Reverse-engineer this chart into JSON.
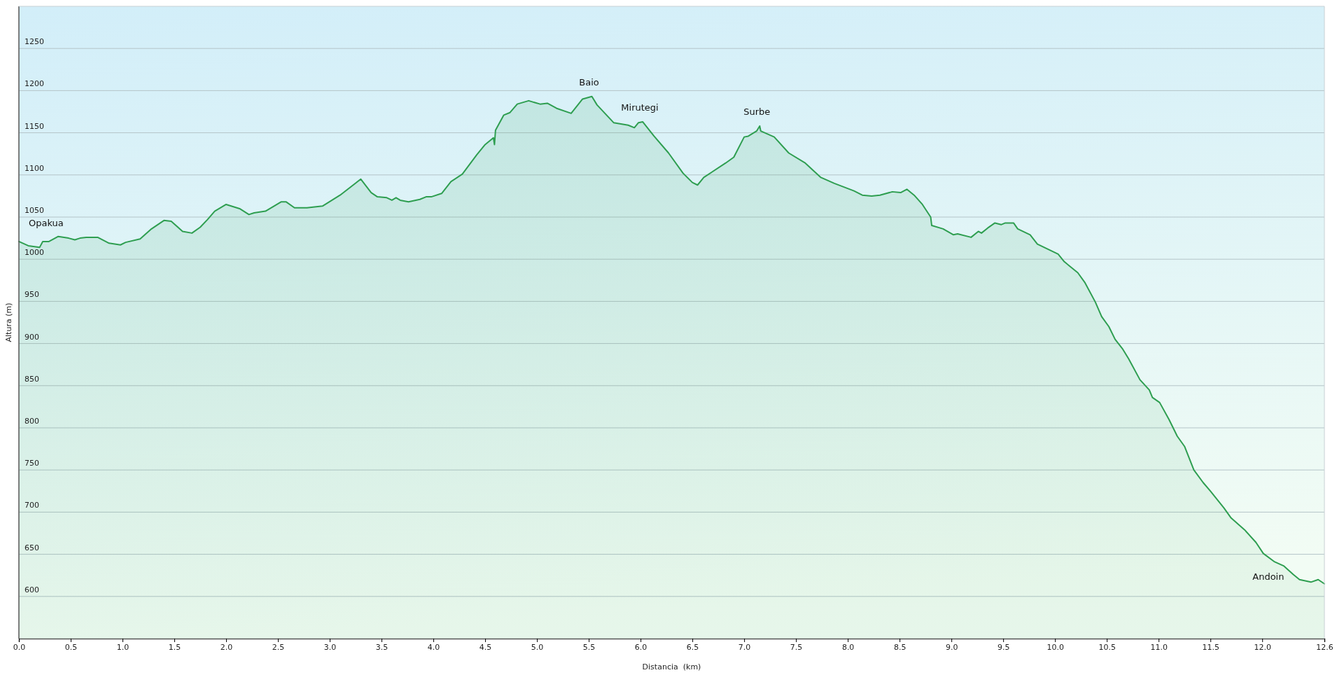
{
  "chart_data": {
    "type": "area",
    "xlabel": "Distancia  (km)",
    "ylabel": "Altura (m)",
    "xlim": [
      0,
      12.6
    ],
    "ylim": [
      550,
      1300
    ],
    "xticks": [
      {
        "value": 0,
        "label": "0.0"
      },
      {
        "value": 0.5,
        "label": "0.5"
      },
      {
        "value": 1,
        "label": "1.0"
      },
      {
        "value": 1.5,
        "label": "1.5"
      },
      {
        "value": 2,
        "label": "2.0"
      },
      {
        "value": 2.5,
        "label": "2.5"
      },
      {
        "value": 3,
        "label": "3.0"
      },
      {
        "value": 3.5,
        "label": "3.5"
      },
      {
        "value": 4,
        "label": "4.0"
      },
      {
        "value": 4.5,
        "label": "4.5"
      },
      {
        "value": 5,
        "label": "5.0"
      },
      {
        "value": 5.5,
        "label": "5.5"
      },
      {
        "value": 6,
        "label": "6.0"
      },
      {
        "value": 6.5,
        "label": "6.5"
      },
      {
        "value": 7,
        "label": "7.0"
      },
      {
        "value": 7.5,
        "label": "7.5"
      },
      {
        "value": 8,
        "label": "8.0"
      },
      {
        "value": 8.5,
        "label": "8.5"
      },
      {
        "value": 9,
        "label": "9.0"
      },
      {
        "value": 9.5,
        "label": "9.5"
      },
      {
        "value": 10,
        "label": "10.0"
      },
      {
        "value": 10.5,
        "label": "10.5"
      },
      {
        "value": 11,
        "label": "11.0"
      },
      {
        "value": 11.5,
        "label": "11.5"
      },
      {
        "value": 12,
        "label": "12.0"
      },
      12.6
    ],
    "yticks": [
      600,
      650,
      700,
      750,
      800,
      850,
      900,
      950,
      1000,
      1050,
      1100,
      1150,
      1200,
      1250
    ],
    "grid": "y",
    "annotations": [
      {
        "text": "Opakua",
        "x": 0,
        "y": 1021
      },
      {
        "text": "Baio",
        "x": 5.53,
        "y": 1193
      },
      {
        "text": "Mirutegi",
        "x": 6.02,
        "y": 1163
      },
      {
        "text": "Surbe",
        "x": 7.15,
        "y": 1158
      },
      {
        "text": "Andoin",
        "x": 12.36,
        "y": 620
      }
    ],
    "series": [
      {
        "color": "#2e9e50",
        "x": [
          0,
          0.09,
          0.2,
          0.23,
          0.29,
          0.38,
          0.48,
          0.54,
          0.59,
          0.65,
          0.76,
          0.87,
          0.98,
          1.03,
          1.17,
          1.28,
          1.4,
          1.47,
          1.58,
          1.67,
          1.75,
          1.82,
          1.89,
          2.0,
          2.13,
          2.22,
          2.27,
          2.38,
          2.53,
          2.58,
          2.66,
          2.78,
          2.93,
          3.1,
          3.3,
          3.4,
          3.46,
          3.55,
          3.6,
          3.64,
          3.68,
          3.76,
          3.87,
          3.93,
          3.98,
          4.08,
          4.17,
          4.28,
          4.42,
          4.5,
          4.58,
          4.59,
          4.6,
          4.68,
          4.74,
          4.81,
          4.92,
          5.03,
          5.1,
          5.19,
          5.33,
          5.44,
          5.53,
          5.58,
          5.74,
          5.88,
          5.94,
          5.98,
          6.02,
          6.13,
          6.27,
          6.41,
          6.5,
          6.55,
          6.61,
          6.82,
          6.9,
          7.0,
          7.04,
          7.12,
          7.15,
          7.16,
          7.29,
          7.43,
          7.59,
          7.74,
          7.87,
          8.06,
          8.14,
          8.23,
          8.31,
          8.43,
          8.51,
          8.57,
          8.64,
          8.72,
          8.8,
          8.81,
          8.92,
          9.02,
          9.06,
          9.19,
          9.26,
          9.29,
          9.35,
          9.42,
          9.48,
          9.52,
          9.6,
          9.64,
          9.76,
          9.83,
          10.03,
          10.09,
          10.22,
          10.29,
          10.39,
          10.45,
          10.52,
          10.58,
          10.65,
          10.71,
          10.82,
          10.91,
          10.94,
          11.01,
          11.1,
          11.18,
          11.25,
          11.34,
          11.43,
          11.5,
          11.63,
          11.7,
          11.83,
          11.94,
          12.01,
          12.12,
          12.21,
          12.3,
          12.36,
          12.47,
          12.54,
          12.6
        ],
        "values": [
          1021,
          1016,
          1014,
          1021,
          1021,
          1027,
          1025,
          1023,
          1025,
          1026,
          1026,
          1019,
          1017,
          1020,
          1024,
          1036,
          1046,
          1045,
          1033,
          1031,
          1038,
          1047,
          1057,
          1065,
          1060,
          1053,
          1055,
          1057,
          1068,
          1068,
          1061,
          1061,
          1063,
          1076,
          1095,
          1079,
          1074,
          1073,
          1070,
          1073,
          1070,
          1068,
          1071,
          1074,
          1074,
          1078,
          1092,
          1101,
          1124,
          1136,
          1144,
          1136,
          1153,
          1171,
          1174,
          1184,
          1188,
          1184,
          1185,
          1179,
          1173,
          1190,
          1193,
          1183,
          1162,
          1159,
          1156,
          1162,
          1163,
          1146,
          1126,
          1102,
          1091,
          1088,
          1097,
          1114,
          1121,
          1145,
          1146,
          1152,
          1158,
          1152,
          1145,
          1126,
          1114,
          1097,
          1090,
          1081,
          1076,
          1075,
          1076,
          1080,
          1079,
          1083,
          1076,
          1065,
          1050,
          1040,
          1036,
          1029,
          1030,
          1026,
          1033,
          1031,
          1037,
          1043,
          1041,
          1043,
          1043,
          1036,
          1029,
          1018,
          1006,
          997,
          984,
          972,
          949,
          932,
          920,
          905,
          894,
          882,
          857,
          845,
          836,
          830,
          810,
          790,
          778,
          750,
          735,
          725,
          705,
          693,
          679,
          664,
          651,
          641,
          636,
          626,
          620,
          617,
          620,
          615
        ]
      }
    ]
  }
}
